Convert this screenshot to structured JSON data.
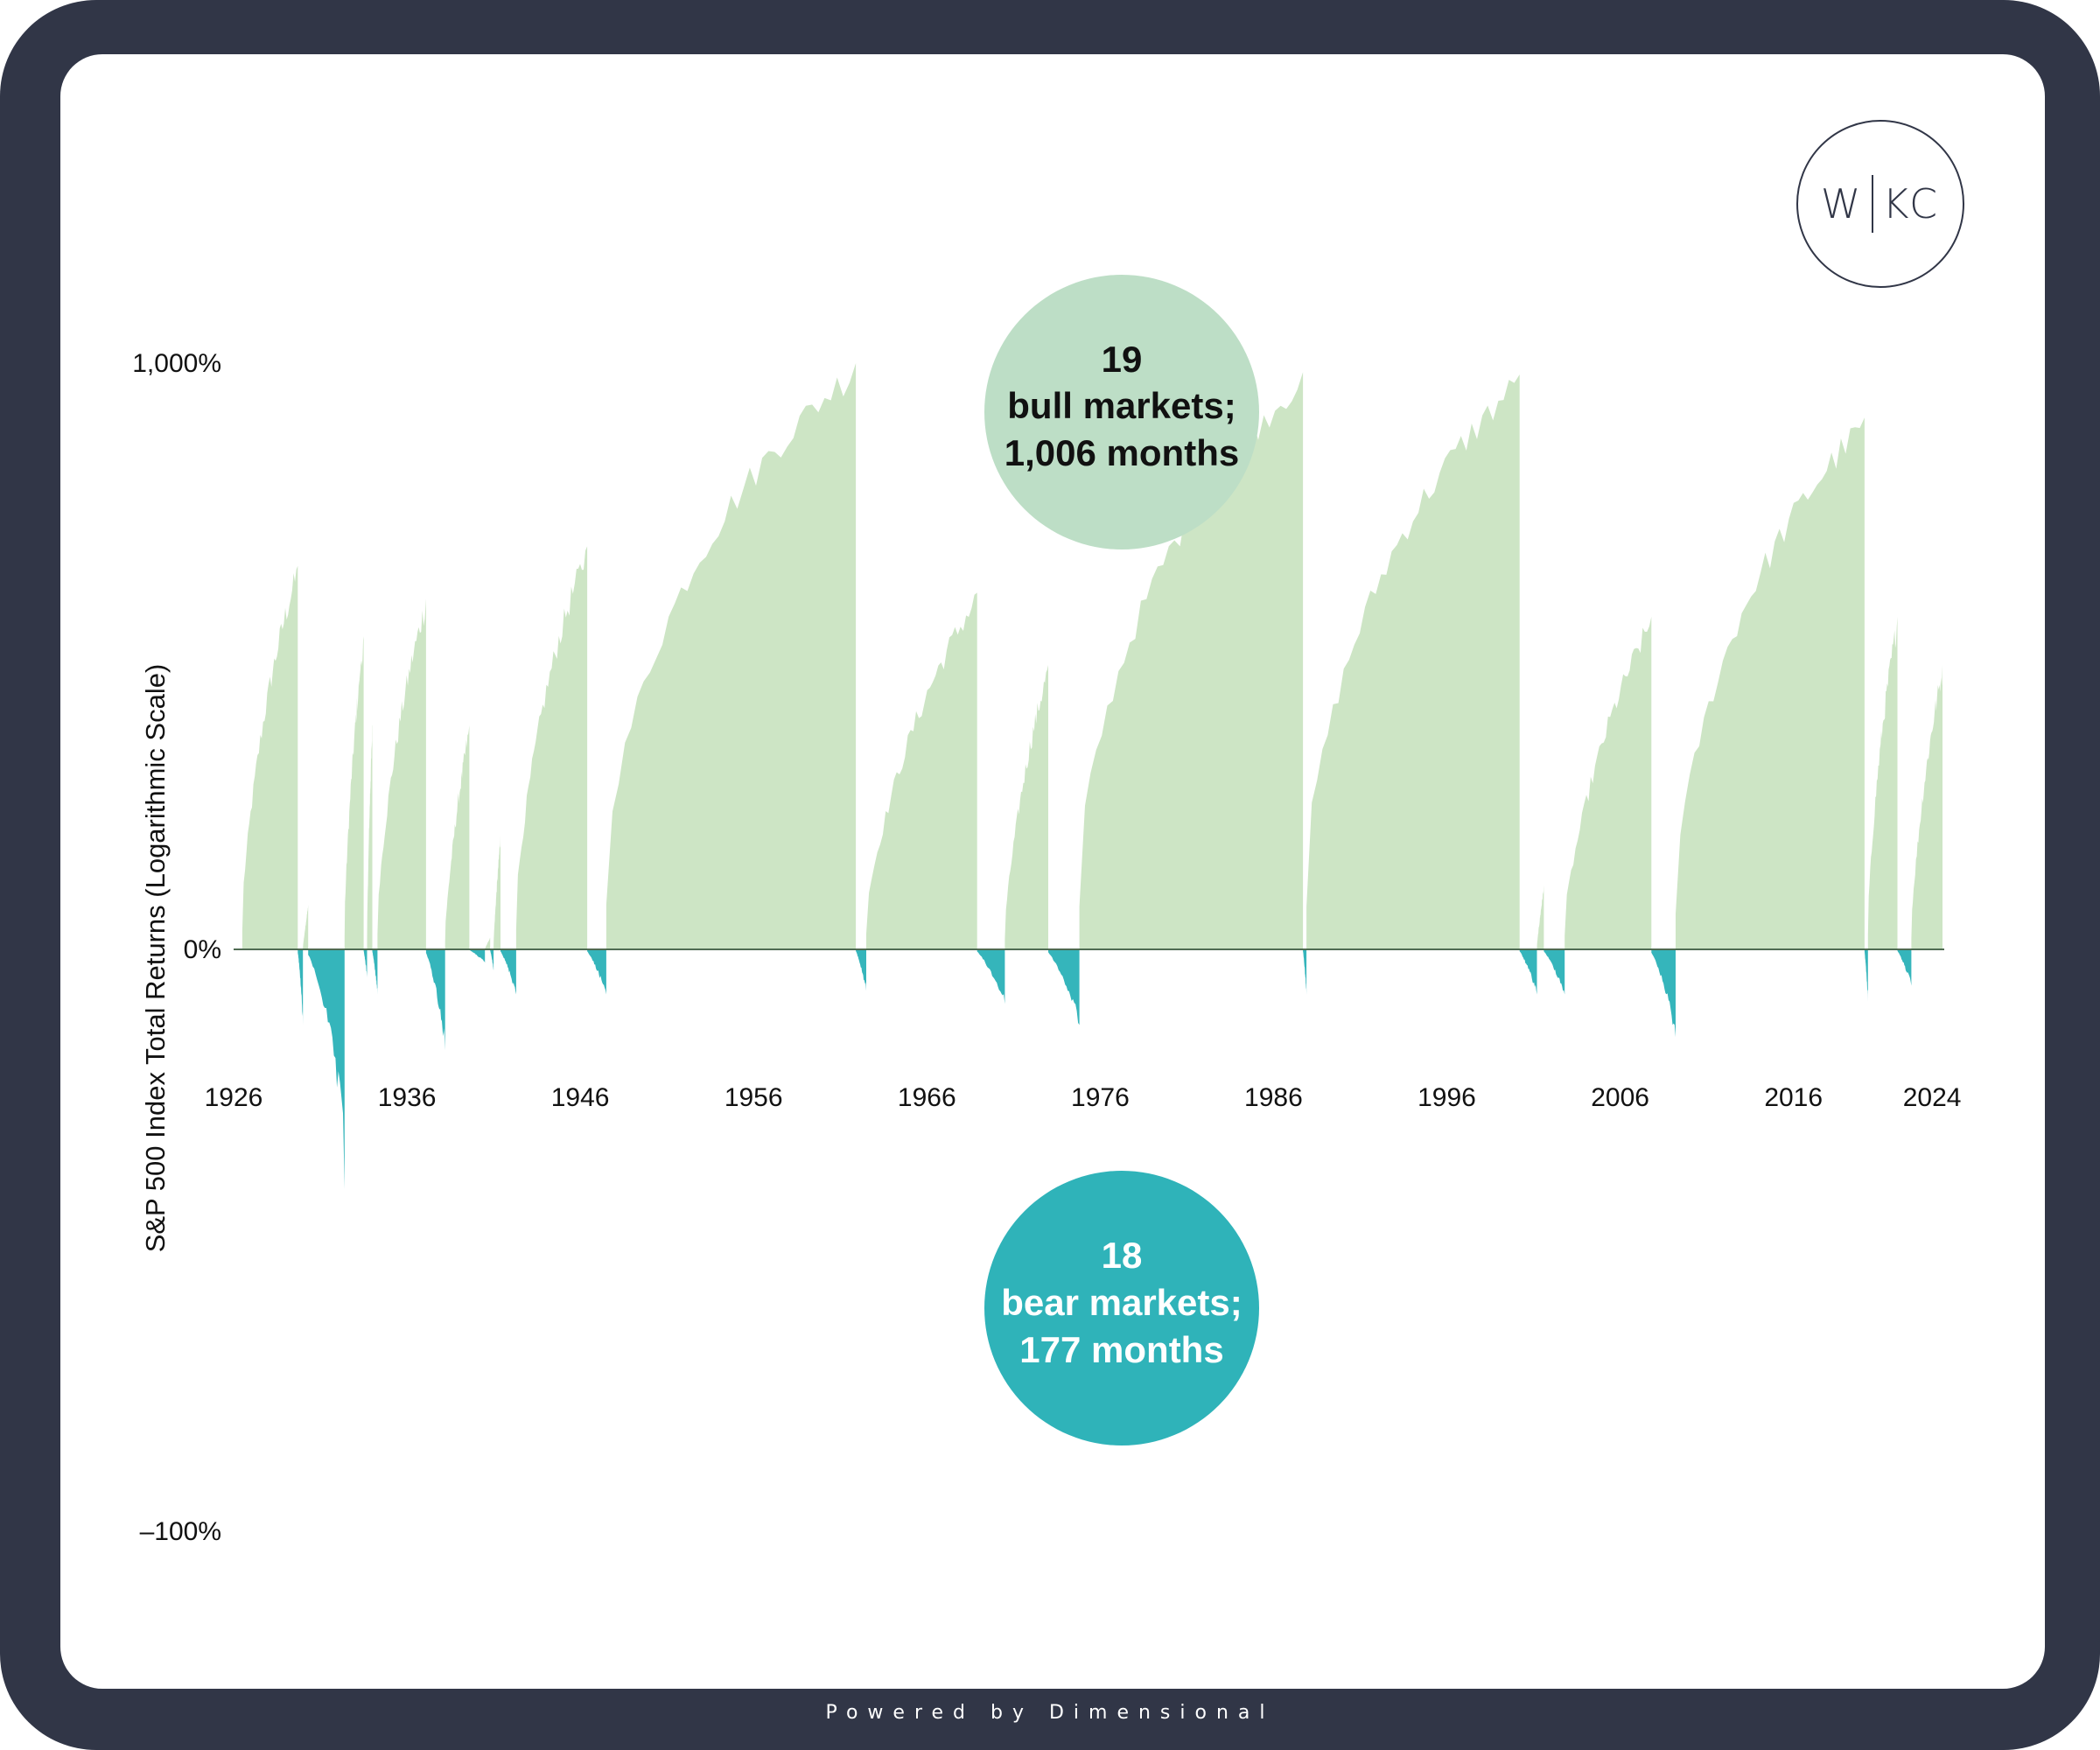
{
  "footer": {
    "text": "Powered by Dimensional"
  },
  "logo": {
    "left": "W",
    "right": "KC"
  },
  "colors": {
    "frame": "#313647",
    "card": "#ffffff",
    "bull": "#cde5c5",
    "bull_bubble": "#bddec6",
    "bear": "#35b5bb",
    "bear_bubble": "#2fb3b9",
    "axis": "#4f6b52"
  },
  "chart_data": {
    "type": "area",
    "ylabel": "S&P 500 Index Total Returns (Logarithmic Scale)",
    "y_scale": "log",
    "y_ticks": [
      {
        "value": 1000,
        "label": "1,000%"
      },
      {
        "value": 0,
        "label": "0%"
      },
      {
        "value": -100,
        "label": "–100%"
      }
    ],
    "x_ticks": [
      "1926",
      "1936",
      "1946",
      "1956",
      "1966",
      "1976",
      "1986",
      "1996",
      "2006",
      "2016",
      "2024"
    ],
    "xlim": [
      1926,
      2024.7
    ],
    "bubbles": {
      "bull": {
        "count": "19",
        "label": "bull markets;",
        "months": "1,006 months"
      },
      "bear": {
        "count": "18",
        "label": "bear markets;",
        "months": "177 months"
      }
    },
    "series": [
      {
        "name": "bull markets",
        "segments": [
          {
            "start": 1926.5,
            "end": 1929.7,
            "peak_pct": 380
          },
          {
            "start": 1930.0,
            "end": 1930.3,
            "peak_pct": 20
          },
          {
            "start": 1932.4,
            "end": 1933.5,
            "peak_pct": 260
          },
          {
            "start": 1933.7,
            "end": 1934.0,
            "peak_pct": 150
          },
          {
            "start": 1934.3,
            "end": 1937.1,
            "peak_pct": 320
          },
          {
            "start": 1938.2,
            "end": 1939.6,
            "peak_pct": 150
          },
          {
            "start": 1940.5,
            "end": 1940.8,
            "peak_pct": 5
          },
          {
            "start": 1941.0,
            "end": 1941.4,
            "peak_pct": 60
          },
          {
            "start": 1942.3,
            "end": 1946.4,
            "peak_pct": 420
          },
          {
            "start": 1947.5,
            "end": 1961.9,
            "peak_pct": 1000
          },
          {
            "start": 1962.5,
            "end": 1968.9,
            "peak_pct": 330
          },
          {
            "start": 1970.5,
            "end": 1973.0,
            "peak_pct": 220
          },
          {
            "start": 1974.8,
            "end": 1987.7,
            "peak_pct": 960
          },
          {
            "start": 1987.9,
            "end": 2000.2,
            "peak_pct": 950
          },
          {
            "start": 2001.2,
            "end": 2001.6,
            "peak_pct": 30
          },
          {
            "start": 2002.8,
            "end": 2007.8,
            "peak_pct": 290
          },
          {
            "start": 2009.2,
            "end": 2020.1,
            "peak_pct": 780
          },
          {
            "start": 2020.3,
            "end": 2022.0,
            "peak_pct": 290
          },
          {
            "start": 2022.8,
            "end": 2024.6,
            "peak_pct": 220
          }
        ]
      },
      {
        "name": "bear markets",
        "segments": [
          {
            "start": 1929.7,
            "end": 1930.0,
            "trough_pct": -45
          },
          {
            "start": 1930.3,
            "end": 1932.4,
            "trough_pct": -85
          },
          {
            "start": 1933.5,
            "end": 1933.7,
            "trough_pct": -20
          },
          {
            "start": 1934.0,
            "end": 1934.3,
            "trough_pct": -30
          },
          {
            "start": 1937.1,
            "end": 1938.2,
            "trough_pct": -55
          },
          {
            "start": 1939.6,
            "end": 1940.5,
            "trough_pct": -10
          },
          {
            "start": 1940.8,
            "end": 1941.0,
            "trough_pct": -15
          },
          {
            "start": 1941.4,
            "end": 1942.3,
            "trough_pct": -30
          },
          {
            "start": 1946.4,
            "end": 1947.5,
            "trough_pct": -30
          },
          {
            "start": 1961.9,
            "end": 1962.5,
            "trough_pct": -28
          },
          {
            "start": 1968.9,
            "end": 1970.5,
            "trough_pct": -35
          },
          {
            "start": 1973.0,
            "end": 1974.8,
            "trough_pct": -45
          },
          {
            "start": 1987.7,
            "end": 1987.9,
            "trough_pct": -30
          },
          {
            "start": 2000.2,
            "end": 2001.2,
            "trough_pct": -30
          },
          {
            "start": 2001.6,
            "end": 2002.8,
            "trough_pct": -30
          },
          {
            "start": 2007.8,
            "end": 2009.2,
            "trough_pct": -50
          },
          {
            "start": 2020.1,
            "end": 2020.3,
            "trough_pct": -34
          },
          {
            "start": 2022.0,
            "end": 2022.8,
            "trough_pct": -25
          }
        ]
      }
    ]
  }
}
